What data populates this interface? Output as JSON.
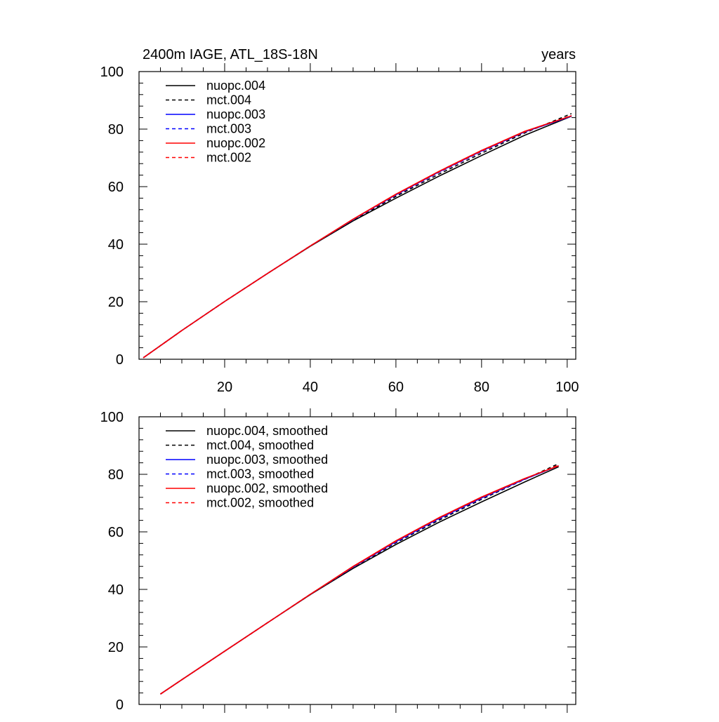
{
  "header": {
    "left": "2400m IAGE, ATL_18S-18N",
    "right": "years"
  },
  "chart_data": [
    {
      "type": "line",
      "x_ticks": [
        20,
        40,
        60,
        80,
        100
      ],
      "x_tick_labels": [
        "20",
        "40",
        "60",
        "80",
        "100"
      ],
      "y_ticks": [
        0,
        20,
        40,
        60,
        80,
        100
      ],
      "y_tick_labels": [
        "0",
        "20",
        "40",
        "60",
        "80",
        "100"
      ],
      "xlim": [
        0,
        102
      ],
      "ylim": [
        0,
        100
      ],
      "legend_position": "top-left",
      "x": [
        1,
        10,
        20,
        30,
        40,
        50,
        60,
        70,
        80,
        90,
        101
      ],
      "series": [
        {
          "name": "nuopc.004",
          "color": "#000000",
          "dash": "solid",
          "values": [
            0.5,
            10.0,
            20.1,
            29.8,
            39.3,
            48.1,
            56.0,
            63.6,
            70.8,
            77.8,
            84.5
          ]
        },
        {
          "name": "mct.004",
          "color": "#000000",
          "dash": "dashed",
          "values": [
            0.5,
            10.0,
            20.1,
            29.8,
            39.3,
            48.3,
            56.6,
            64.3,
            71.6,
            78.6,
            85.4
          ]
        },
        {
          "name": "nuopc.003",
          "color": "#0000ff",
          "dash": "solid",
          "values": [
            0.5,
            10.0,
            20.1,
            29.8,
            39.4,
            48.6,
            57.2,
            65.1,
            72.4,
            79.0,
            84.5
          ]
        },
        {
          "name": "mct.003",
          "color": "#0000ff",
          "dash": "dashed",
          "values": [
            0.5,
            10.0,
            20.1,
            29.8,
            39.4,
            48.5,
            57.0,
            64.9,
            72.2,
            78.9,
            84.6
          ]
        },
        {
          "name": "nuopc.002",
          "color": "#ff0000",
          "dash": "solid",
          "values": [
            0.5,
            10.0,
            20.1,
            29.8,
            39.4,
            48.7,
            57.4,
            65.3,
            72.6,
            79.2,
            84.6
          ]
        },
        {
          "name": "mct.002",
          "color": "#ff0000",
          "dash": "dashed",
          "values": [
            0.5,
            10.0,
            20.1,
            29.8,
            39.4,
            48.6,
            57.2,
            65.1,
            72.4,
            79.0,
            84.7
          ]
        }
      ]
    },
    {
      "type": "line",
      "x_ticks": [
        20,
        40,
        60,
        80,
        100
      ],
      "x_tick_labels": [
        "",
        "",
        "",
        "",
        ""
      ],
      "y_ticks": [
        0,
        20,
        40,
        60,
        80,
        100
      ],
      "y_tick_labels": [
        "0",
        "20",
        "40",
        "60",
        "80",
        "100"
      ],
      "xlim": [
        0,
        102
      ],
      "ylim": [
        0,
        100
      ],
      "legend_position": "top-left",
      "x": [
        5,
        10,
        20,
        30,
        40,
        50,
        60,
        70,
        80,
        90,
        98
      ],
      "series": [
        {
          "name": "nuopc.004, smoothed",
          "color": "#000000",
          "dash": "solid",
          "values": [
            3.6,
            8.6,
            18.5,
            28.4,
            38.2,
            47.3,
            55.6,
            63.3,
            70.4,
            77.3,
            82.6
          ]
        },
        {
          "name": "mct.004, smoothed",
          "color": "#000000",
          "dash": "dashed",
          "values": [
            3.6,
            8.6,
            18.5,
            28.4,
            38.2,
            47.6,
            56.2,
            64.0,
            71.3,
            78.2,
            83.7
          ]
        },
        {
          "name": "nuopc.003, smoothed",
          "color": "#0000ff",
          "dash": "solid",
          "values": [
            3.6,
            8.6,
            18.5,
            28.4,
            38.3,
            47.8,
            56.6,
            64.6,
            71.8,
            78.3,
            83.0
          ]
        },
        {
          "name": "mct.003, smoothed",
          "color": "#0000ff",
          "dash": "dashed",
          "values": [
            3.6,
            8.6,
            18.5,
            28.4,
            38.3,
            47.7,
            56.4,
            64.4,
            71.6,
            78.2,
            83.1
          ]
        },
        {
          "name": "nuopc.002, smoothed",
          "color": "#ff0000",
          "dash": "solid",
          "values": [
            3.6,
            8.6,
            18.5,
            28.4,
            38.3,
            48.0,
            56.9,
            64.9,
            72.1,
            78.5,
            83.0
          ]
        },
        {
          "name": "mct.002, smoothed",
          "color": "#ff0000",
          "dash": "dashed",
          "values": [
            3.6,
            8.6,
            18.5,
            28.4,
            38.3,
            47.8,
            56.7,
            64.7,
            71.9,
            78.4,
            83.2
          ]
        }
      ]
    }
  ]
}
